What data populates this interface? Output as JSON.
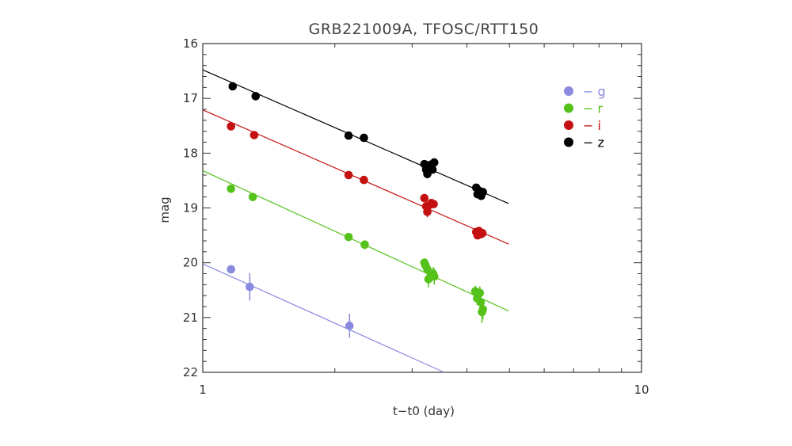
{
  "chart_data": {
    "type": "scatter",
    "title": "GRB221009A, TFOSC/RTT150",
    "xlabel": "t−t0 (day)",
    "ylabel": "mag",
    "x_scale": "log",
    "xlim": [
      1,
      10
    ],
    "ylim": [
      22,
      16
    ],
    "y_inverted": true,
    "x_tick_labels": [
      "1",
      "10"
    ],
    "y_tick_labels": [
      "16",
      "17",
      "18",
      "19",
      "20",
      "21",
      "22"
    ],
    "grid": false,
    "legend_position": "top-right",
    "series": [
      {
        "name": "g",
        "legend_text": "− g",
        "color": "#8a8ae0",
        "fit_line": [
          [
            1.0,
            20.02
          ],
          [
            3.55,
            22.0
          ]
        ],
        "points": [
          {
            "x": 1.16,
            "y": 20.12,
            "err": 0.06
          },
          {
            "x": 1.28,
            "y": 20.44,
            "err": 0.25
          },
          {
            "x": 2.16,
            "y": 21.15,
            "err": 0.22
          }
        ]
      },
      {
        "name": "r",
        "legend_text": "− r",
        "color": "#55c21b",
        "fit_line": [
          [
            1.0,
            18.32
          ],
          [
            4.98,
            20.88
          ]
        ],
        "points": [
          {
            "x": 1.16,
            "y": 18.65,
            "err": 0.04
          },
          {
            "x": 1.3,
            "y": 18.8,
            "err": 0.04
          },
          {
            "x": 2.15,
            "y": 19.53,
            "err": 0.05
          },
          {
            "x": 2.34,
            "y": 19.67,
            "err": 0.08
          },
          {
            "x": 3.2,
            "y": 20.0,
            "err": 0.08
          },
          {
            "x": 3.22,
            "y": 20.05,
            "err": 0.1
          },
          {
            "x": 3.25,
            "y": 20.12,
            "err": 0.1
          },
          {
            "x": 3.27,
            "y": 20.3,
            "err": 0.15
          },
          {
            "x": 3.31,
            "y": 20.22,
            "err": 0.12
          },
          {
            "x": 3.35,
            "y": 20.2,
            "err": 0.12
          },
          {
            "x": 3.37,
            "y": 20.25,
            "err": 0.15
          },
          {
            "x": 4.18,
            "y": 20.52,
            "err": 0.1
          },
          {
            "x": 4.22,
            "y": 20.65,
            "err": 0.12
          },
          {
            "x": 4.25,
            "y": 20.58,
            "err": 0.1
          },
          {
            "x": 4.28,
            "y": 20.55,
            "err": 0.12
          },
          {
            "x": 4.3,
            "y": 20.72,
            "err": 0.15
          },
          {
            "x": 4.33,
            "y": 20.9,
            "err": 0.2
          },
          {
            "x": 4.35,
            "y": 20.85,
            "err": 0.18
          }
        ]
      },
      {
        "name": "i",
        "legend_text": "− i",
        "color": "#c41010",
        "fit_line": [
          [
            1.0,
            17.21
          ],
          [
            4.98,
            19.66
          ]
        ],
        "points": [
          {
            "x": 1.16,
            "y": 17.51,
            "err": 0.03
          },
          {
            "x": 1.31,
            "y": 17.67,
            "err": 0.03
          },
          {
            "x": 2.15,
            "y": 18.4,
            "err": 0.04
          },
          {
            "x": 2.33,
            "y": 18.49,
            "err": 0.04
          },
          {
            "x": 3.2,
            "y": 18.82,
            "err": 0.05
          },
          {
            "x": 3.23,
            "y": 18.97,
            "err": 0.06
          },
          {
            "x": 3.25,
            "y": 19.07,
            "err": 0.1
          },
          {
            "x": 3.28,
            "y": 18.95,
            "err": 0.06
          },
          {
            "x": 3.32,
            "y": 18.91,
            "err": 0.06
          },
          {
            "x": 3.36,
            "y": 18.93,
            "err": 0.06
          },
          {
            "x": 4.2,
            "y": 19.44,
            "err": 0.05
          },
          {
            "x": 4.23,
            "y": 19.5,
            "err": 0.06
          },
          {
            "x": 4.26,
            "y": 19.42,
            "err": 0.05
          },
          {
            "x": 4.3,
            "y": 19.48,
            "err": 0.06
          },
          {
            "x": 4.34,
            "y": 19.46,
            "err": 0.06
          }
        ]
      },
      {
        "name": "z",
        "legend_text": "− z",
        "color": "#000000",
        "fit_line": [
          [
            1.0,
            16.48
          ],
          [
            4.98,
            18.92
          ]
        ],
        "points": [
          {
            "x": 1.17,
            "y": 16.78,
            "err": 0.03
          },
          {
            "x": 1.32,
            "y": 16.96,
            "err": 0.03
          },
          {
            "x": 2.15,
            "y": 17.68,
            "err": 0.04
          },
          {
            "x": 2.33,
            "y": 17.72,
            "err": 0.04
          },
          {
            "x": 3.2,
            "y": 18.2,
            "err": 0.05
          },
          {
            "x": 3.23,
            "y": 18.3,
            "err": 0.06
          },
          {
            "x": 3.25,
            "y": 18.38,
            "err": 0.08
          },
          {
            "x": 3.28,
            "y": 18.24,
            "err": 0.06
          },
          {
            "x": 3.31,
            "y": 18.21,
            "err": 0.06
          },
          {
            "x": 3.34,
            "y": 18.3,
            "err": 0.06
          },
          {
            "x": 3.37,
            "y": 18.17,
            "err": 0.06
          },
          {
            "x": 4.2,
            "y": 18.63,
            "err": 0.05
          },
          {
            "x": 4.23,
            "y": 18.75,
            "err": 0.06
          },
          {
            "x": 4.27,
            "y": 18.69,
            "err": 0.06
          },
          {
            "x": 4.31,
            "y": 18.78,
            "err": 0.07
          },
          {
            "x": 4.35,
            "y": 18.71,
            "err": 0.06
          }
        ]
      }
    ]
  }
}
